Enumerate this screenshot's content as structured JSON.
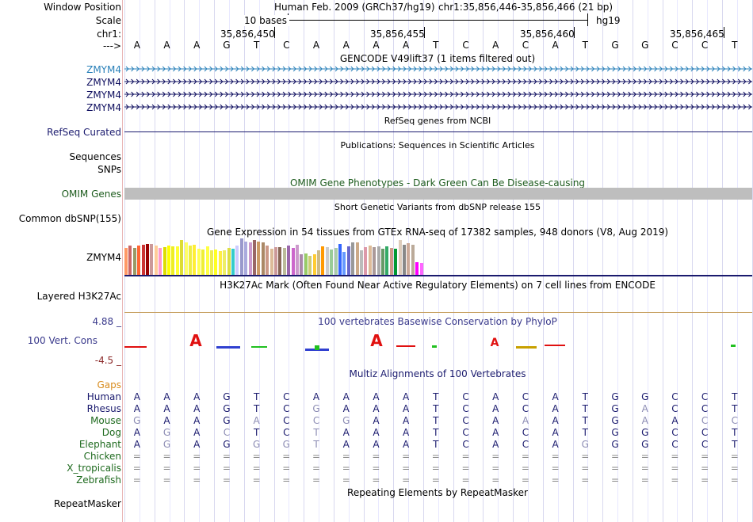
{
  "labels": {
    "window_position": "Window Position",
    "scale": "Scale",
    "chr": "chr1:",
    "arrow": "--->",
    "zmym4": "ZMYM4",
    "refseq": "RefSeq Curated",
    "sequences": "Sequences",
    "snps": "SNPs",
    "omim": "OMIM Genes",
    "dbsnp": "Common dbSNP(155)",
    "gtex_gene": "ZMYM4",
    "h3k27ac": "Layered H3K27Ac",
    "cons_max": "4.88 _",
    "cons": "100 Vert. Cons",
    "cons_min": "-4.5 _",
    "gaps": "Gaps",
    "repeatmasker": "RepeatMasker"
  },
  "header": {
    "assembly": "Human Feb. 2009 (GRCh37/hg19)",
    "position": "chr1:35,856,446-35,856,466 (21 bp)",
    "scale_text": "10 bases",
    "scale_db": "hg19"
  },
  "ruler": {
    "ticks": [
      "35,856,450",
      "35,856,455",
      "35,856,460",
      "35,856,465"
    ]
  },
  "sequence": [
    "A",
    "A",
    "A",
    "G",
    "T",
    "C",
    "A",
    "A",
    "A",
    "A",
    "T",
    "C",
    "A",
    "C",
    "A",
    "T",
    "G",
    "G",
    "C",
    "C",
    "T"
  ],
  "tracks": {
    "gencode": "GENCODE V49lift37 (1 items filtered out)",
    "refseq": "RefSeq genes from NCBI",
    "publications": "Publications: Sequences in Scientific Articles",
    "omim": "OMIM Gene Phenotypes - Dark Green Can Be Disease-causing",
    "dbsnp": "Short Genetic Variants from dbSNP release 155",
    "gtex": "Gene Expression in 54 tissues from GTEx RNA-seq of 17382 samples, 948 donors (V8, Aug 2019)",
    "h3k27ac": "H3K27Ac Mark (Often Found Near Active Regulatory Elements) on 7 cell lines from ENCODE",
    "phylop": "100 vertebrates Basewise Conservation by PhyloP",
    "multiz": "Multiz Alignments of 100 Vertebrates",
    "rmsk": "Repeating Elements by RepeatMasker"
  },
  "species": [
    {
      "name": "Human",
      "bases": "AAAGTCAAAATCACATGGCCT",
      "faded": []
    },
    {
      "name": "Rhesus",
      "bases": "AAAGTCGAAATCACATGACCT",
      "faded": [
        6,
        17
      ]
    },
    {
      "name": "Mouse",
      "bases": "GAAGACCGAATCAAATGAACC",
      "faded": [
        0,
        4,
        6,
        7,
        13,
        17,
        19,
        20
      ]
    },
    {
      "name": "Dog",
      "bases": "AGACTCTAAATCACATGGCCT",
      "faded": [
        1,
        3,
        6
      ]
    },
    {
      "name": "Elephant",
      "bases": "AGAGGGTAAATCACAGGGCCT",
      "faded": [
        1,
        4,
        5,
        6,
        15
      ]
    },
    {
      "name": "Chicken",
      "bases": "=====================",
      "faded": []
    },
    {
      "name": "X_tropicalis",
      "bases": "=====================",
      "faded": []
    },
    {
      "name": "Zebrafish",
      "bases": "=====================",
      "faded": []
    }
  ],
  "gtex_values": [
    34,
    37,
    34,
    37,
    38,
    39,
    39,
    37,
    34,
    35,
    37,
    36,
    36,
    44,
    41,
    37,
    38,
    33,
    32,
    36,
    31,
    32,
    30,
    31,
    34,
    33,
    37,
    46,
    42,
    41,
    44,
    42,
    41,
    37,
    33,
    35,
    35,
    34,
    37,
    34,
    38,
    26,
    27,
    24,
    26,
    31,
    36,
    35,
    32,
    34,
    39,
    29,
    36,
    41,
    41,
    31,
    35,
    37,
    35,
    36,
    33,
    36,
    34,
    33,
    44,
    38,
    40,
    38,
    16,
    15
  ],
  "gtex_colors": [
    "#ff9966",
    "#cc6666",
    "#999966",
    "#ff6633",
    "#cc3333",
    "#990000",
    "#cc9999",
    "#ffcc99",
    "#ff99cc",
    "#dddd00",
    "#ffff00",
    "#eeee22",
    "#ffff33",
    "#dddd33",
    "#ffff66",
    "#eeee44",
    "#ffee33",
    "#ffff55",
    "#eeee33",
    "#ffff44",
    "#eeee55",
    "#ffff22",
    "#ffee44",
    "#eeee66",
    "#dddd44",
    "#33cccc",
    "#ccccff",
    "#9999cc",
    "#aaaadd",
    "#cc99cc",
    "#996666",
    "#cc9966",
    "#aa8866",
    "#cc9988",
    "#ddbb99",
    "#cc9999",
    "#886655",
    "#bbbb99",
    "#9966aa",
    "#cc66cc",
    "#cc99cc",
    "#aa88aa",
    "#99cc66",
    "#cccc77",
    "#ffcc33",
    "#ccbb88",
    "#ff9900",
    "#cccccc",
    "#99cc99",
    "#aaccaa",
    "#3366ff",
    "#6699ff",
    "#6666cc",
    "#999999",
    "#ccaa88",
    "#bbbbbb",
    "#dd99aa",
    "#ddbb99",
    "#aa9999",
    "#aaaaaa",
    "#669966",
    "#33aa66",
    "#cc9988",
    "#009933",
    "#ddccbb",
    "#888888",
    "#ccaa99",
    "#bbaa99",
    "#ff00ff",
    "#ff66ff"
  ]
}
